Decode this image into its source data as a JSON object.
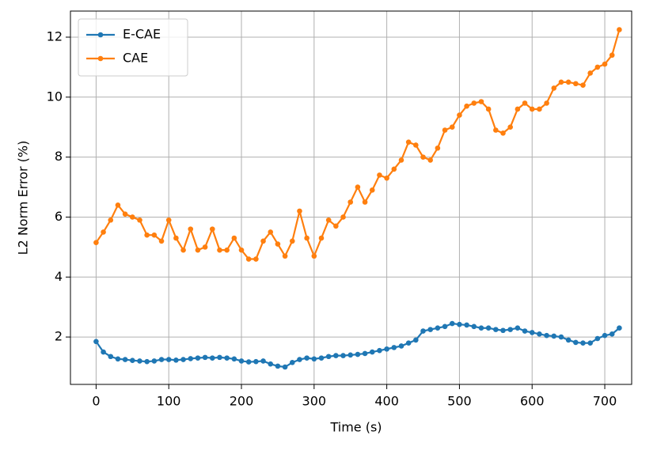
{
  "chart_data": {
    "type": "line",
    "xlabel": "Time (s)",
    "ylabel": "L2 Norm Error (%)",
    "x": [
      0,
      10,
      20,
      30,
      40,
      50,
      60,
      70,
      80,
      90,
      100,
      110,
      120,
      130,
      140,
      150,
      160,
      170,
      180,
      190,
      200,
      210,
      220,
      230,
      240,
      250,
      260,
      270,
      280,
      290,
      300,
      310,
      320,
      330,
      340,
      350,
      360,
      370,
      380,
      390,
      400,
      410,
      420,
      430,
      440,
      450,
      460,
      470,
      480,
      490,
      500,
      510,
      520,
      530,
      540,
      550,
      560,
      570,
      580,
      590,
      600,
      610,
      620,
      630,
      640,
      650,
      660,
      670,
      680,
      690,
      700,
      710,
      720
    ],
    "series": [
      {
        "name": "E-CAE",
        "color": "#1f77b4",
        "values": [
          1.85,
          1.5,
          1.35,
          1.27,
          1.25,
          1.22,
          1.2,
          1.18,
          1.2,
          1.25,
          1.25,
          1.23,
          1.25,
          1.28,
          1.3,
          1.32,
          1.3,
          1.32,
          1.3,
          1.27,
          1.2,
          1.17,
          1.18,
          1.2,
          1.1,
          1.03,
          1.0,
          1.15,
          1.25,
          1.3,
          1.27,
          1.3,
          1.35,
          1.38,
          1.38,
          1.4,
          1.42,
          1.45,
          1.5,
          1.55,
          1.6,
          1.65,
          1.7,
          1.8,
          1.9,
          2.2,
          2.25,
          2.3,
          2.35,
          2.45,
          2.42,
          2.4,
          2.35,
          2.3,
          2.3,
          2.25,
          2.22,
          2.25,
          2.3,
          2.2,
          2.15,
          2.1,
          2.05,
          2.03,
          2.0,
          1.9,
          1.82,
          1.8,
          1.8,
          1.95,
          2.05,
          2.1,
          2.3
        ]
      },
      {
        "name": "CAE",
        "color": "#ff7f0e",
        "values": [
          5.15,
          5.5,
          5.9,
          6.4,
          6.1,
          6.0,
          5.9,
          5.4,
          5.4,
          5.2,
          5.9,
          5.3,
          4.9,
          5.6,
          4.9,
          5.0,
          5.6,
          4.9,
          4.9,
          5.3,
          4.9,
          4.6,
          4.6,
          5.2,
          5.5,
          5.1,
          4.7,
          5.2,
          6.2,
          5.3,
          4.7,
          5.3,
          5.9,
          5.7,
          6.0,
          6.5,
          7.0,
          6.5,
          6.9,
          7.4,
          7.3,
          7.6,
          7.9,
          8.5,
          8.4,
          8.0,
          7.9,
          8.3,
          8.9,
          9.0,
          9.4,
          9.7,
          9.8,
          9.85,
          9.6,
          8.9,
          8.8,
          9.0,
          9.6,
          9.8,
          9.6,
          9.6,
          9.8,
          10.3,
          10.5,
          10.5,
          10.45,
          10.4,
          10.8,
          11.0,
          11.1,
          11.4,
          12.25
        ]
      }
    ],
    "xlim": [
      -35.3,
      737
    ],
    "xticks": [
      0,
      100,
      200,
      300,
      400,
      500,
      600,
      700
    ],
    "ylim": [
      0.42,
      12.87
    ],
    "yticks": [
      2,
      4,
      6,
      8,
      10,
      12
    ],
    "grid": true,
    "legend": "upper left"
  }
}
